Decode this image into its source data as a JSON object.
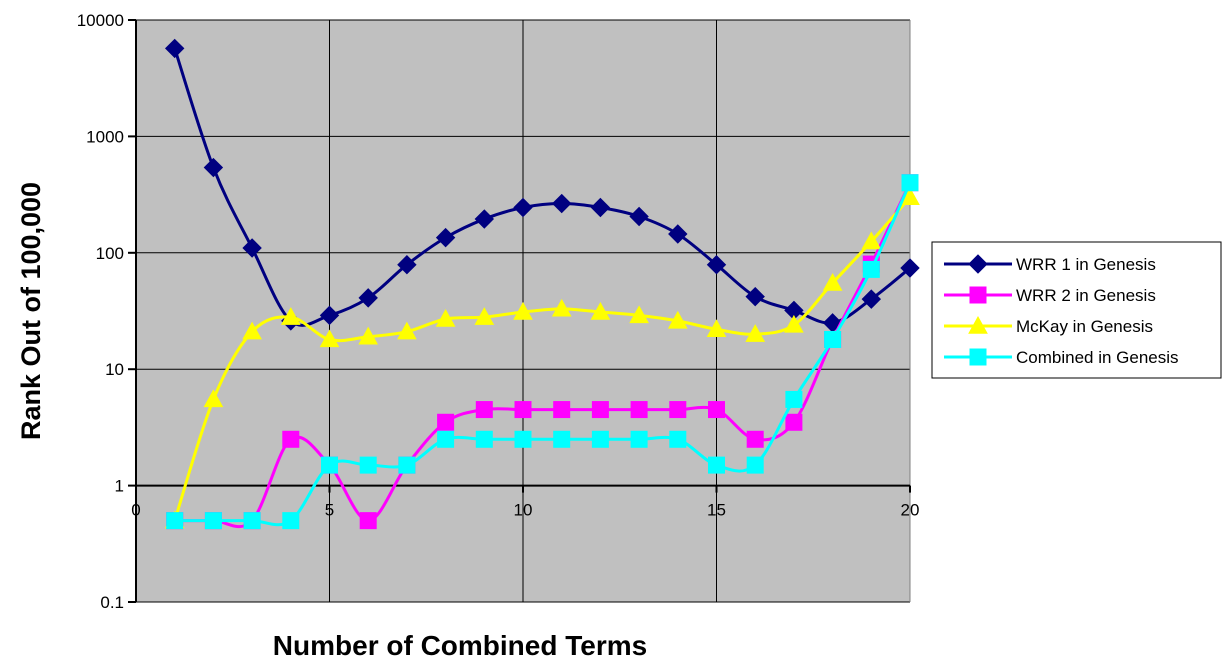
{
  "chart_data": {
    "type": "line",
    "title": "",
    "xlabel": "Number of Combined Terms",
    "ylabel": "Rank Out of 100,000",
    "x_scale": "linear",
    "y_scale": "log",
    "xlim": [
      0,
      20
    ],
    "ylim": [
      0.1,
      10000
    ],
    "x_ticks": [
      "0",
      "5",
      "10",
      "15",
      "20"
    ],
    "y_ticks": [
      "0.1",
      "1",
      "10",
      "100",
      "1000",
      "10000"
    ],
    "x_tick_values": [
      0,
      5,
      10,
      15,
      20
    ],
    "y_tick_values": [
      0.1,
      1,
      10,
      100,
      1000,
      10000
    ],
    "grid": true,
    "plot_background": "#c0c0c0",
    "legend_position": "right",
    "x": [
      1,
      2,
      3,
      4,
      5,
      6,
      7,
      8,
      9,
      10,
      11,
      12,
      13,
      14,
      15,
      16,
      17,
      18,
      19,
      20
    ],
    "series": [
      {
        "name": "WRR 1 in Genesis",
        "color": "#000080",
        "marker": "diamond",
        "values": [
          5700,
          540,
          110,
          26,
          29,
          41,
          79,
          135,
          195,
          245,
          265,
          245,
          205,
          145,
          79,
          42,
          32,
          25,
          40,
          74
        ]
      },
      {
        "name": "WRR 2 in Genesis",
        "color": "#ff00ff",
        "marker": "square",
        "values": [
          0.5,
          0.5,
          0.5,
          2.5,
          1.5,
          0.5,
          1.5,
          3.5,
          4.5,
          4.5,
          4.5,
          4.5,
          4.5,
          4.5,
          4.5,
          2.5,
          3.5,
          18,
          80,
          400
        ]
      },
      {
        "name": "McKay in Genesis",
        "color": "#ffff00",
        "marker": "triangle",
        "values": [
          0.5,
          5.5,
          21,
          28,
          18,
          19,
          21,
          27,
          28,
          31,
          33,
          31,
          29,
          26,
          22,
          20,
          24,
          55,
          125,
          300
        ]
      },
      {
        "name": "Combined in Genesis",
        "color": "#00ffff",
        "marker": "square",
        "values": [
          0.5,
          0.5,
          0.5,
          0.5,
          1.5,
          1.5,
          1.5,
          2.5,
          2.5,
          2.5,
          2.5,
          2.5,
          2.5,
          2.5,
          1.5,
          1.5,
          5.5,
          18,
          72,
          400
        ]
      }
    ]
  }
}
